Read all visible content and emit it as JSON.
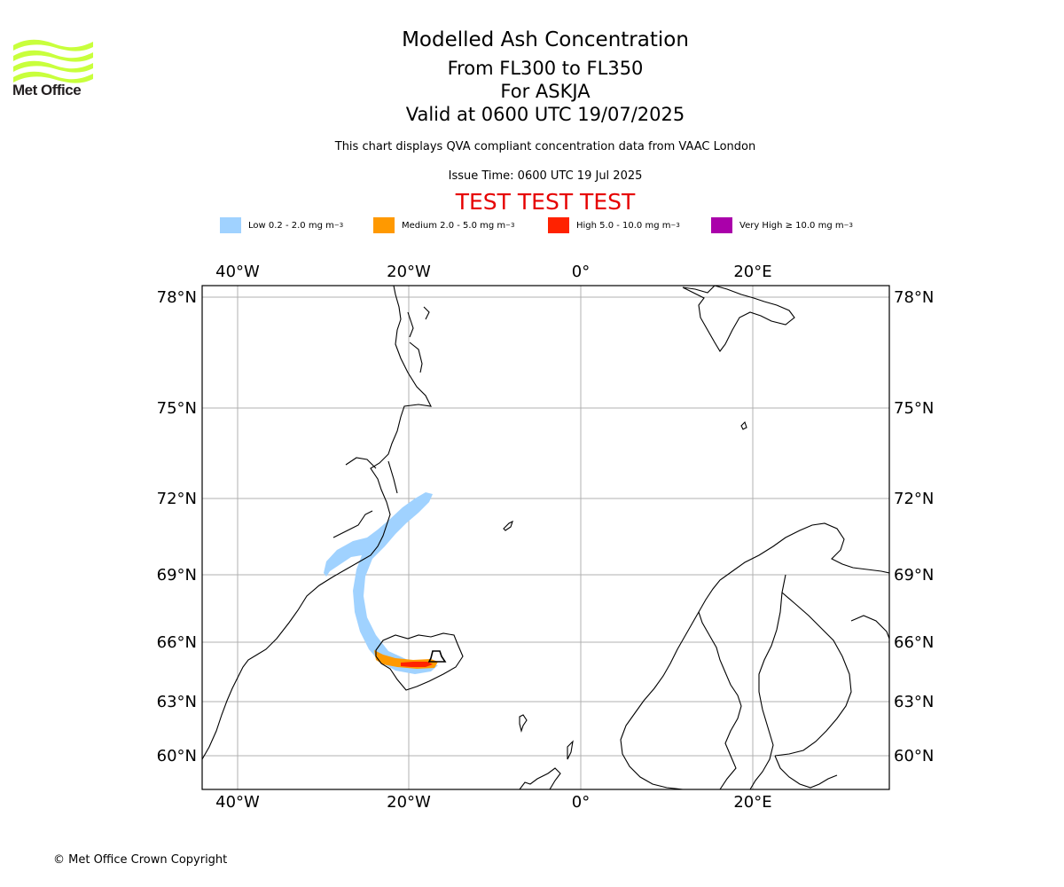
{
  "header": {
    "logo_text": "Met Office",
    "title": "Modelled Ash Concentration",
    "levels": "From FL300 to FL350",
    "volcano": "For ASKJA",
    "valid": "Valid at 0600 UTC 19/07/2025",
    "subtitle": "This chart displays QVA compliant concentration data from VAAC London",
    "issue_time": "Issue Time: 0600 UTC 19 Jul 2025",
    "test_banner": "TEST TEST TEST"
  },
  "legend": [
    {
      "name": "low",
      "label": "Low 0.2 - 2.0 mg m",
      "sup": "−3",
      "color": "#a0d2ff"
    },
    {
      "name": "medium",
      "label": "Medium 2.0 - 5.0 mg m",
      "sup": "−3",
      "color": "#ff9900"
    },
    {
      "name": "high",
      "label": "High 5.0 - 10.0 mg m",
      "sup": "−3",
      "color": "#ff2200"
    },
    {
      "name": "very-high",
      "label": "Very High  ≥  10.0 mg m",
      "sup": "−3",
      "color": "#aa00aa"
    }
  ],
  "map": {
    "lon_labels": [
      "40°W",
      "20°W",
      "0°",
      "20°E"
    ],
    "lat_labels": [
      "78°N",
      "75°N",
      "72°N",
      "69°N",
      "66°N",
      "63°N",
      "60°N"
    ]
  },
  "footer": {
    "copyright": "© Met Office Crown Copyright"
  }
}
